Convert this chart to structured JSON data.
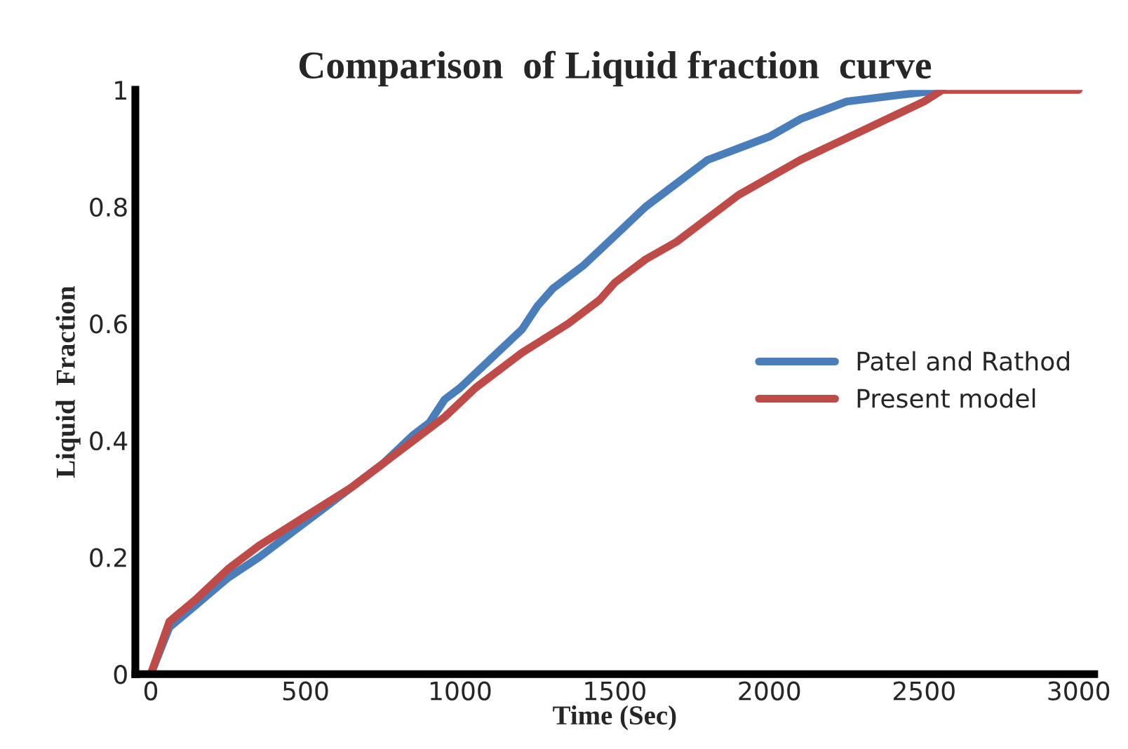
{
  "chart_data": {
    "type": "line",
    "title": "Comparison  of Liquid fraction  curve",
    "xlabel": "Time (Sec)",
    "ylabel": "Liquid  Fraction",
    "xlim": [
      -50,
      3050
    ],
    "xticks": [
      0,
      500,
      1000,
      1500,
      2000,
      2500,
      3000
    ],
    "ylim": [
      0,
      1
    ],
    "yticks": [
      0,
      0.2,
      0.4,
      0.6,
      0.8,
      1
    ],
    "grid": false,
    "legend": "right",
    "marker": "none",
    "line_style": "solid",
    "series": [
      {
        "name": "Patel and Rathod",
        "color": "#4a7ebb",
        "x": [
          0,
          60,
          150,
          250,
          350,
          450,
          550,
          650,
          750,
          850,
          900,
          950,
          1000,
          1100,
          1200,
          1250,
          1300,
          1400,
          1500,
          1600,
          1700,
          1800,
          1900,
          2000,
          2100,
          2250,
          2400,
          2560
        ],
        "values": [
          0,
          0.08,
          0.12,
          0.165,
          0.2,
          0.24,
          0.28,
          0.32,
          0.36,
          0.41,
          0.43,
          0.47,
          0.49,
          0.54,
          0.59,
          0.63,
          0.66,
          0.7,
          0.75,
          0.8,
          0.84,
          0.88,
          0.9,
          0.92,
          0.95,
          0.98,
          0.99,
          1.0
        ]
      },
      {
        "name": "Present model",
        "color": "#be4b48",
        "x": [
          0,
          60,
          150,
          250,
          350,
          500,
          650,
          800,
          950,
          1050,
          1200,
          1350,
          1450,
          1500,
          1550,
          1600,
          1700,
          1800,
          1900,
          2000,
          2100,
          2200,
          2300,
          2400,
          2500,
          2560,
          3000
        ],
        "values": [
          0,
          0.09,
          0.13,
          0.18,
          0.22,
          0.27,
          0.32,
          0.38,
          0.44,
          0.49,
          0.55,
          0.6,
          0.64,
          0.67,
          0.69,
          0.71,
          0.74,
          0.78,
          0.82,
          0.85,
          0.88,
          0.905,
          0.93,
          0.955,
          0.98,
          1.0,
          1.0
        ]
      }
    ]
  }
}
